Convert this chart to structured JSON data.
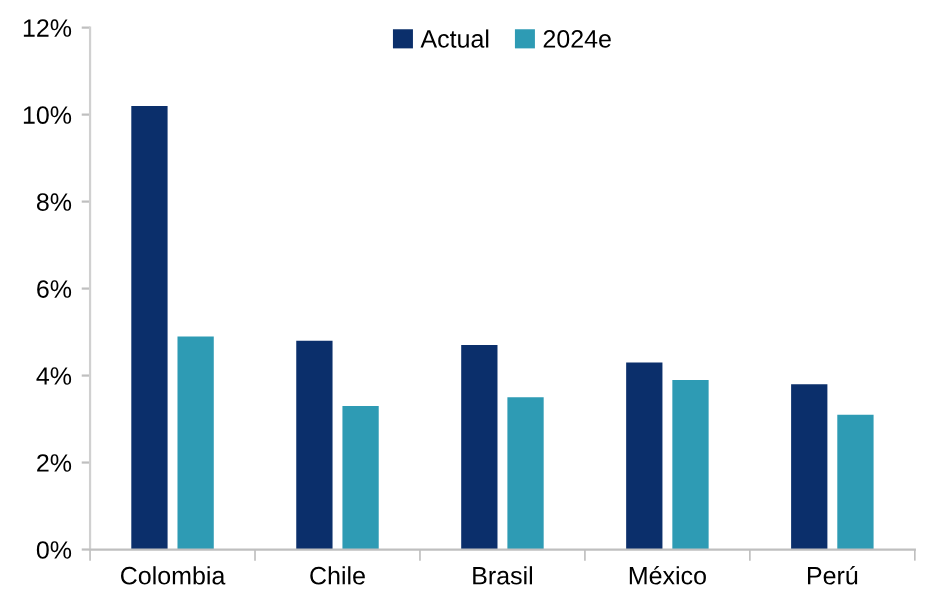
{
  "chart_data": {
    "type": "bar",
    "categories": [
      "Colombia",
      "Chile",
      "Brasil",
      "México",
      "Perú"
    ],
    "series": [
      {
        "name": "Actual",
        "color": "#0b2f6b",
        "values": [
          10.2,
          4.8,
          4.7,
          4.3,
          3.8
        ]
      },
      {
        "name": "2024e",
        "color": "#2e9bb4",
        "values": [
          4.9,
          3.3,
          3.5,
          3.9,
          3.1
        ]
      }
    ],
    "ylim": [
      0,
      12
    ],
    "yticks": [
      {
        "value": 0,
        "label": "0%"
      },
      {
        "value": 2,
        "label": "2%"
      },
      {
        "value": 4,
        "label": "4%"
      },
      {
        "value": 6,
        "label": "6%"
      },
      {
        "value": 8,
        "label": "8%"
      },
      {
        "value": 10,
        "label": "10%"
      },
      {
        "value": 12,
        "label": "12%"
      }
    ],
    "grid": false,
    "legend": "top"
  }
}
